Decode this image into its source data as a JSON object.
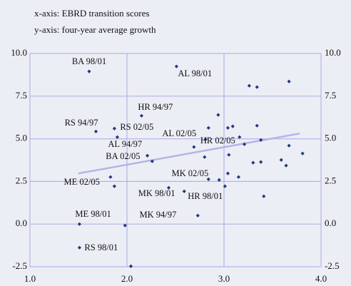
{
  "chart_data": {
    "type": "scatter",
    "annotations": [
      "x-axis: EBRD transition scores",
      "y-axis: four-year average growth"
    ],
    "xlim": [
      1.0,
      4.0
    ],
    "xticks": [
      {
        "value": 1.0,
        "label": "1.0"
      },
      {
        "value": 2.0,
        "label": "2.0"
      },
      {
        "value": 3.0,
        "label": "3.0"
      },
      {
        "value": 4.0,
        "label": "4.0"
      }
    ],
    "ylim": [
      -2.5,
      10.0
    ],
    "yticks": [
      {
        "value": -2.5,
        "label": "-2.5"
      },
      {
        "value": 0.0,
        "label": "0.0"
      },
      {
        "value": 2.5,
        "label": "2.5"
      },
      {
        "value": 5.0,
        "label": "5.0"
      },
      {
        "value": 7.5,
        "label": "7.5"
      },
      {
        "value": 10.0,
        "label": "10.0"
      }
    ],
    "grid": true,
    "color": "#1f3a7a",
    "trendline": {
      "color": "#b4b4e6",
      "x": [
        1.5,
        3.78
      ],
      "y": [
        2.97,
        5.31
      ]
    },
    "series": [
      {
        "color": "#1f3a7a",
        "x": [
          1.61,
          2.51,
          3.26,
          3.34,
          3.67,
          2.15,
          2.94,
          1.68,
          1.87,
          1.9,
          2.84,
          3.04,
          3.09,
          3.34,
          2.81,
          2.69,
          3.16,
          3.21,
          3.38,
          3.3,
          3.38,
          3.59,
          3.64,
          3.67,
          3.81,
          3.05,
          2.8,
          2.21,
          2.26,
          1.83,
          1.87,
          2.84,
          2.95,
          3.04,
          3.15,
          3.01,
          2.43,
          2.59,
          3.41,
          2.73,
          1.51,
          1.98,
          1.51,
          2.04
        ],
        "values": [
          8.95,
          9.24,
          8.11,
          8.03,
          8.36,
          6.35,
          6.4,
          5.43,
          5.6,
          5.1,
          5.64,
          5.64,
          5.73,
          5.77,
          4.97,
          4.52,
          5.1,
          4.68,
          4.93,
          3.6,
          3.64,
          3.76,
          3.43,
          4.6,
          4.14,
          4.06,
          3.93,
          4.01,
          3.68,
          2.76,
          2.22,
          2.63,
          2.59,
          2.97,
          2.76,
          2.22,
          2.13,
          1.92,
          1.63,
          0.5,
          0.0,
          -0.08,
          -1.38,
          -2.47
        ],
        "labels": [
          "BA 98/01",
          "AL 98/01",
          null,
          null,
          null,
          "HR 94/97",
          null,
          "RS 94/97",
          "RS 02/05",
          "AL 94/97",
          null,
          null,
          null,
          null,
          "AL 02/05",
          "HR 02/05",
          null,
          null,
          null,
          null,
          null,
          null,
          null,
          null,
          null,
          null,
          null,
          "BA 02/05",
          null,
          "ME 02/05",
          null,
          "MK 02/05",
          null,
          null,
          null,
          null,
          "MK 98/01",
          "HR 98/01",
          null,
          "MK 94/97",
          "ME 98/01",
          null,
          "RS 98/01",
          null
        ]
      }
    ]
  }
}
